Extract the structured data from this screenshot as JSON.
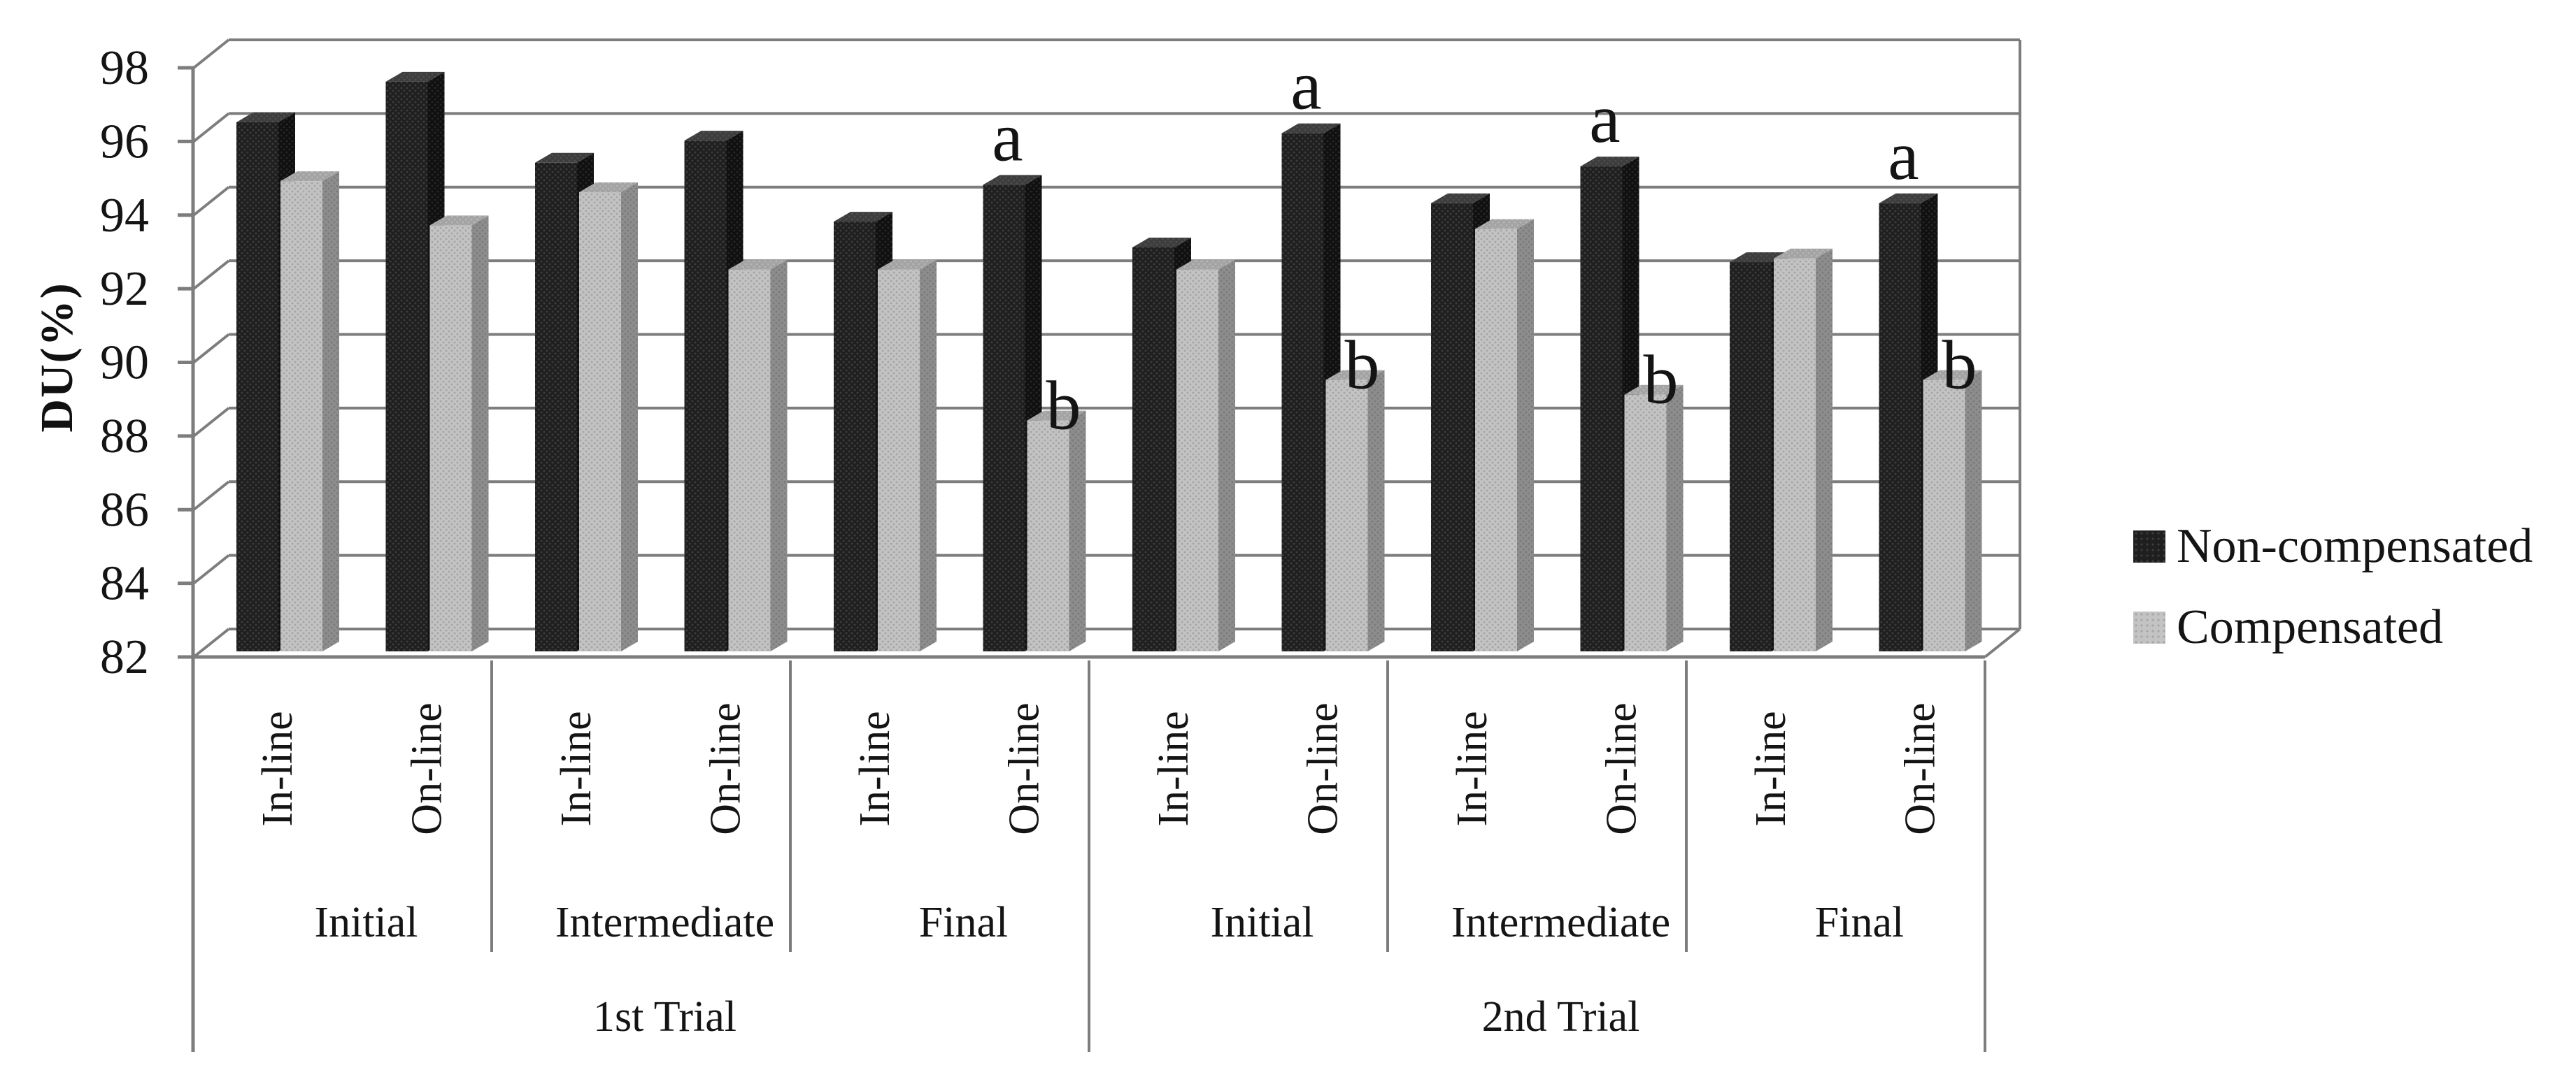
{
  "figure": {
    "background": "#ffffff"
  },
  "y_axis": {
    "title": "DU(%)",
    "min": 82,
    "max": 98,
    "tick_step": 2,
    "tick_labels": [
      "98",
      "96",
      "94",
      "92",
      "90",
      "88",
      "86",
      "84",
      "82"
    ]
  },
  "legend": {
    "items": [
      {
        "label": "Non-compensated",
        "swatch": "dark"
      },
      {
        "label": "Compensated",
        "swatch": "gray"
      }
    ]
  },
  "chart_data": {
    "type": "bar",
    "title": "",
    "xlabel": "",
    "ylabel": "DU(%)",
    "ylim": [
      82,
      98
    ],
    "ytick_step": 2,
    "grid": true,
    "legend_position": "right",
    "categories": [
      {
        "line_type": "In-line",
        "stage": "Initial",
        "trial": "1st Trial"
      },
      {
        "line_type": "On-line",
        "stage": "Initial",
        "trial": "1st Trial"
      },
      {
        "line_type": "In-line",
        "stage": "Intermediate",
        "trial": "1st Trial"
      },
      {
        "line_type": "On-line",
        "stage": "Intermediate",
        "trial": "1st Trial"
      },
      {
        "line_type": "In-line",
        "stage": "Final",
        "trial": "1st Trial"
      },
      {
        "line_type": "On-line",
        "stage": "Final",
        "trial": "1st Trial"
      },
      {
        "line_type": "In-line",
        "stage": "Initial",
        "trial": "2nd Trial"
      },
      {
        "line_type": "On-line",
        "stage": "Initial",
        "trial": "2nd Trial"
      },
      {
        "line_type": "In-line",
        "stage": "Intermediate",
        "trial": "2nd Trial"
      },
      {
        "line_type": "On-line",
        "stage": "Intermediate",
        "trial": "2nd Trial"
      },
      {
        "line_type": "In-line",
        "stage": "Final",
        "trial": "2nd Trial"
      },
      {
        "line_type": "On-line",
        "stage": "Final",
        "trial": "2nd Trial"
      }
    ],
    "stage_groups": [
      {
        "label": "Initial",
        "start": 0,
        "end": 2
      },
      {
        "label": "Intermediate",
        "start": 2,
        "end": 4
      },
      {
        "label": "Final",
        "start": 4,
        "end": 6
      },
      {
        "label": "Initial",
        "start": 6,
        "end": 8
      },
      {
        "label": "Intermediate",
        "start": 8,
        "end": 10
      },
      {
        "label": "Final",
        "start": 10,
        "end": 12
      }
    ],
    "trial_groups": [
      {
        "label": "1st Trial",
        "start": 0,
        "end": 6
      },
      {
        "label": "2nd Trial",
        "start": 6,
        "end": 12
      }
    ],
    "series": [
      {
        "name": "Non-compensated",
        "values": [
          96.2,
          97.3,
          95.1,
          95.7,
          93.5,
          94.5,
          92.8,
          95.9,
          94.0,
          95.0,
          92.4,
          94.0
        ]
      },
      {
        "name": "Compensated",
        "values": [
          94.6,
          93.4,
          94.3,
          92.2,
          92.2,
          88.1,
          92.2,
          89.2,
          93.3,
          88.8,
          92.5,
          89.2
        ]
      }
    ],
    "annotations": [
      {
        "category_index": 5,
        "series": 0,
        "text": "a"
      },
      {
        "category_index": 5,
        "series": 1,
        "text": "b"
      },
      {
        "category_index": 7,
        "series": 0,
        "text": "a"
      },
      {
        "category_index": 7,
        "series": 1,
        "text": "b"
      },
      {
        "category_index": 9,
        "series": 0,
        "text": "a"
      },
      {
        "category_index": 9,
        "series": 1,
        "text": "b"
      },
      {
        "category_index": 11,
        "series": 0,
        "text": "a"
      },
      {
        "category_index": 11,
        "series": 1,
        "text": "b"
      }
    ]
  },
  "colors": {
    "line": "#7d7d7d",
    "text": "#141414",
    "non_compensated": {
      "front": "#1f1f1f",
      "dot": "#3c3c3c",
      "side": "#101010",
      "side_dot": "#262626",
      "top": "#3d3d3d",
      "top_dot": "#4d4d4d"
    },
    "compensated": {
      "front": "#c3c3c3",
      "dot": "#a6a6a6",
      "side": "#8d8d8d",
      "side_dot": "#7b7b7b",
      "top": "#a3a3a3",
      "top_dot": "#b5b5b5"
    }
  }
}
